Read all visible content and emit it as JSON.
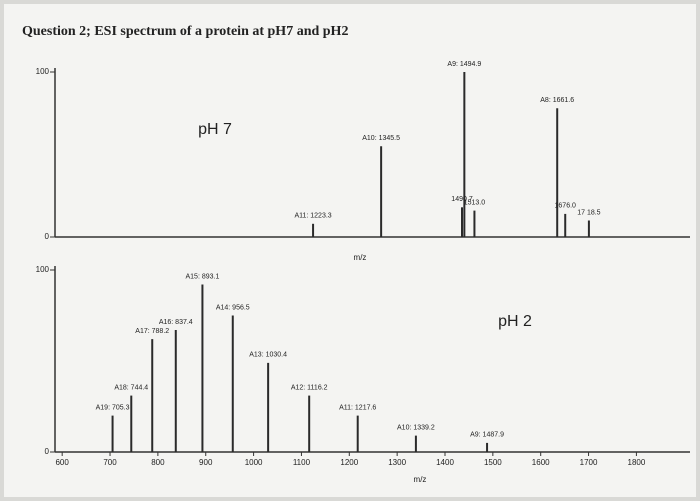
{
  "header": {
    "title": "Question 2; ESI spectrum of a protein at pH7 and pH2"
  },
  "chart_data": [
    {
      "type": "stem",
      "title": "pH 7",
      "x_label": "m/z",
      "xlim": [
        760,
        1900
      ],
      "ylim": [
        0,
        100
      ],
      "yticks": [
        0,
        100
      ],
      "color": "#2a2a2a",
      "x": [
        1223.3,
        1345.5,
        1494.9,
        1490.7,
        1513.0,
        1661.6,
        1676.0,
        1718.5
      ],
      "values": [
        8,
        55,
        100,
        18,
        16,
        78,
        14,
        10
      ],
      "labels": [
        "A11: 1223.3",
        "A10: 1345.5",
        "A9: 1494.9",
        "1490 7",
        "1513.0",
        "A8: 1661.6",
        "1676.0",
        "17 18.5"
      ]
    },
    {
      "type": "stem",
      "title": "pH 2",
      "x_label": "m/z",
      "xlim": [
        585,
        1912
      ],
      "ylim": [
        0,
        100
      ],
      "yticks": [
        0,
        100
      ],
      "xticks": [
        600,
        700,
        800,
        900,
        1000,
        1100,
        1200,
        1300,
        1400,
        1500,
        1600,
        1700,
        1800
      ],
      "color": "#2a2a2a",
      "x": [
        705.3,
        744.4,
        788.2,
        837.4,
        893.1,
        956.5,
        1030.4,
        1116.2,
        1217.6,
        1339.2,
        1487.9
      ],
      "values": [
        20,
        31,
        62,
        67,
        92,
        75,
        49,
        31,
        20,
        9,
        5
      ],
      "labels": [
        "A19: 705.3",
        "A18: 744.4",
        "A17: 788.2",
        "A16: 837.4",
        "A15: 893.1",
        "A14: 956.5",
        "A13: 1030.4",
        "A12: 1116.2",
        "A11: 1217.6",
        "A10: 1339.2",
        "A9: 1487.9"
      ]
    }
  ]
}
